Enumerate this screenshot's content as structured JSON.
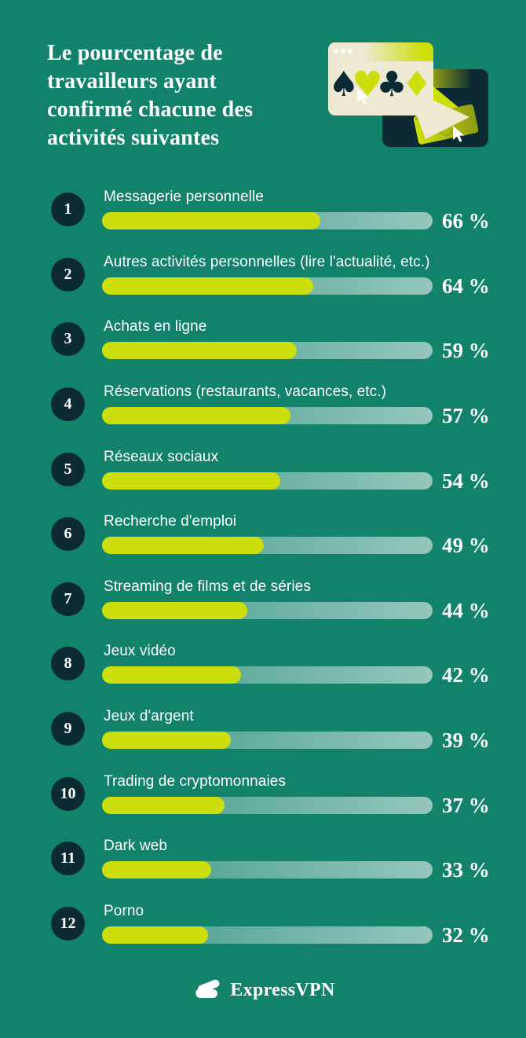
{
  "colors": {
    "background": "#12826B",
    "navy": "#0B2A33",
    "lime": "#CCDF0D",
    "cream": "#EDE9D2",
    "text": "#FFFFFF"
  },
  "header": {
    "title_lines": [
      "Le pourcentage de",
      "travailleurs ayant",
      "confirmé chacune des",
      "activités suivantes"
    ]
  },
  "illustration": {
    "suits": [
      "♠",
      "♥",
      "♣",
      "♦"
    ]
  },
  "chart_data": {
    "type": "bar",
    "orientation": "horizontal",
    "title": "Le pourcentage de travailleurs ayant confirmé chacune des activités suivantes",
    "unit": "%",
    "xlim": [
      0,
      100
    ],
    "ranks": [
      "1",
      "2",
      "3",
      "4",
      "5",
      "6",
      "7",
      "8",
      "9",
      "10",
      "11",
      "12"
    ],
    "categories": [
      "Messagerie personnelle",
      "Autres activités personnelles (lire l'actualité, etc.)",
      "Achats en ligne",
      "Réservations (restaurants, vacances, etc.)",
      "Réseaux sociaux",
      "Recherche d'emploi",
      "Streaming de films et de séries",
      "Jeux vidéo",
      "Jeux d'argent",
      "Trading de cryptomonnaies",
      "Dark web",
      "Porno"
    ],
    "values": [
      66,
      64,
      59,
      57,
      54,
      49,
      44,
      42,
      39,
      37,
      33,
      32
    ],
    "value_labels": [
      "66 %",
      "64 %",
      "59 %",
      "57 %",
      "54 %",
      "49 %",
      "44 %",
      "42 %",
      "39 %",
      "37 %",
      "33 %",
      "32 %"
    ],
    "bar_color": "#CCDF0D",
    "track_gradient": [
      "rgba(255,255,255,0.20)",
      "rgba(255,255,255,0.55)"
    ],
    "legend": "none",
    "grid": "off"
  },
  "footer": {
    "brand": "ExpressVPN"
  }
}
